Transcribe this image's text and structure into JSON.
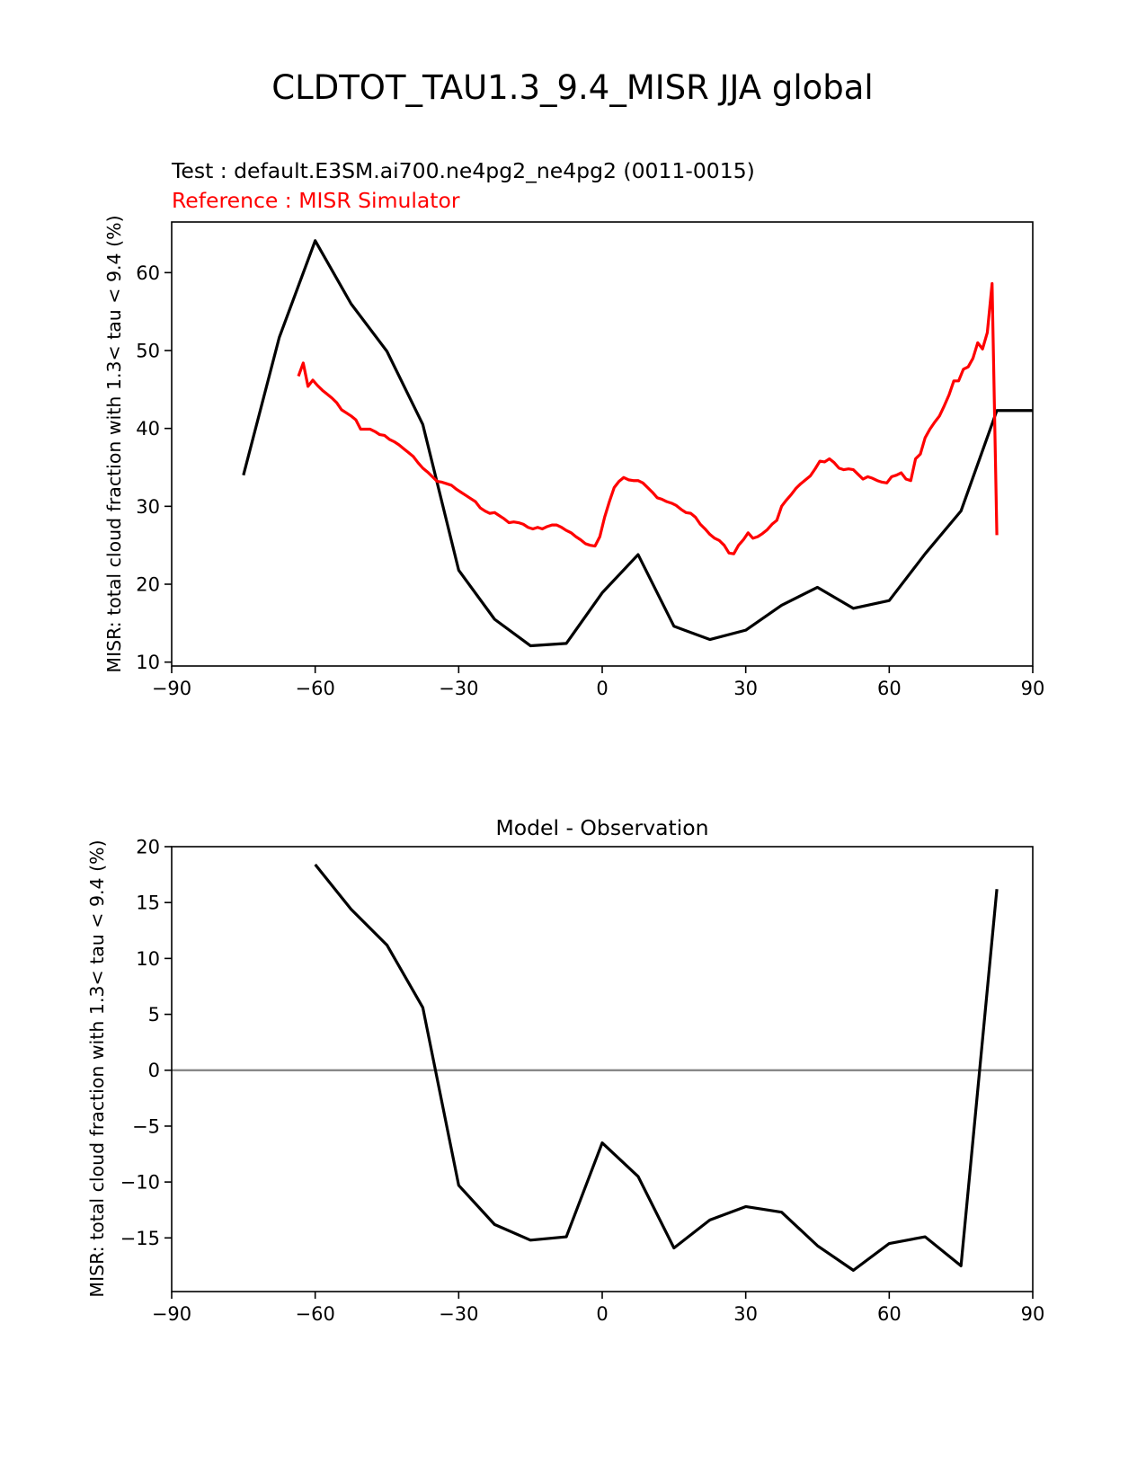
{
  "figure": {
    "suptitle": "CLDTOT_TAU1.3_9.4_MISR JJA global"
  },
  "chart_data": [
    {
      "type": "line",
      "title_test": "Test : default.E3SM.ai700.ne4pg2_ne4pg2 (0011-0015)",
      "title_reference": "Reference : MISR Simulator",
      "ylabel": "MISR: total cloud fraction with 1.3< tau < 9.4 (%)",
      "xlabel": "",
      "xlim": [
        -90,
        90
      ],
      "ylim": [
        9.5,
        66.5
      ],
      "xticks": [
        -90,
        -60,
        -30,
        0,
        30,
        60,
        90
      ],
      "yticks": [
        10,
        20,
        30,
        40,
        50,
        60
      ],
      "grid": false,
      "series": [
        {
          "role": "test",
          "color": "#000000",
          "x": [
            -75,
            -67.5,
            -60,
            -52.5,
            -45,
            -37.5,
            -30,
            -22.5,
            -15,
            -7.5,
            0,
            7.5,
            15,
            22.5,
            30,
            37.5,
            45,
            52.5,
            60,
            67.5,
            75,
            82.5,
            90
          ],
          "y": [
            34.0,
            51.7,
            64.1,
            56.0,
            49.9,
            40.5,
            21.8,
            15.5,
            12.1,
            12.4,
            18.9,
            23.8,
            14.6,
            12.9,
            14.1,
            17.3,
            19.6,
            16.9,
            17.9,
            23.9,
            29.4,
            42.3,
            42.3
          ]
        },
        {
          "role": "reference",
          "color": "#ff0000",
          "x": [
            -63.5,
            -62.5,
            -61.5,
            -60.5,
            -59.5,
            -58.5,
            -57.5,
            -56.5,
            -55.5,
            -54.5,
            -53.5,
            -52.5,
            -51.5,
            -50.5,
            -49.5,
            -48.5,
            -47.5,
            -46.5,
            -45.5,
            -44.5,
            -43.5,
            -42.5,
            -41.5,
            -40.5,
            -39.5,
            -38.5,
            -37.5,
            -36.5,
            -35.5,
            -34.5,
            -33.5,
            -32.5,
            -31.5,
            -30.5,
            -29.5,
            -28.5,
            -27.5,
            -26.5,
            -25.5,
            -24.5,
            -23.5,
            -22.5,
            -21.5,
            -20.5,
            -19.5,
            -18.5,
            -17.5,
            -16.5,
            -15.5,
            -14.5,
            -13.5,
            -12.5,
            -11.5,
            -10.5,
            -9.5,
            -8.5,
            -7.5,
            -6.5,
            -5.5,
            -4.5,
            -3.5,
            -2.5,
            -1.5,
            -0.5,
            0.5,
            1.5,
            2.5,
            3.5,
            4.5,
            5.5,
            6.5,
            7.5,
            8.5,
            9.5,
            10.5,
            11.5,
            12.5,
            13.5,
            14.5,
            15.5,
            16.5,
            17.5,
            18.5,
            19.5,
            20.5,
            21.5,
            22.5,
            23.5,
            24.5,
            25.5,
            26.5,
            27.5,
            28.5,
            29.5,
            30.5,
            31.5,
            32.5,
            33.5,
            34.5,
            35.5,
            36.5,
            37.5,
            38.5,
            39.5,
            40.5,
            41.5,
            42.5,
            43.5,
            44.5,
            45.5,
            46.5,
            47.5,
            48.5,
            49.5,
            50.5,
            51.5,
            52.5,
            53.5,
            54.5,
            55.5,
            56.5,
            57.5,
            58.5,
            59.5,
            60.5,
            61.5,
            62.5,
            63.5,
            64.5,
            65.5,
            66.5,
            67.5,
            68.5,
            69.5,
            70.5,
            71.5,
            72.5,
            73.5,
            74.5,
            75.5,
            76.5,
            77.5,
            78.5,
            79.5,
            80.5,
            81.5,
            82.5
          ],
          "y": [
            46.7,
            48.4,
            45.4,
            46.2,
            45.5,
            44.9,
            44.4,
            43.9,
            43.3,
            42.4,
            42.0,
            41.6,
            41.1,
            39.9,
            39.9,
            39.9,
            39.6,
            39.2,
            39.1,
            38.6,
            38.3,
            37.9,
            37.4,
            36.9,
            36.4,
            35.6,
            34.9,
            34.4,
            33.8,
            33.2,
            33.1,
            32.9,
            32.7,
            32.2,
            31.8,
            31.4,
            31.0,
            30.6,
            29.8,
            29.4,
            29.1,
            29.2,
            28.8,
            28.4,
            27.9,
            28.0,
            27.9,
            27.7,
            27.3,
            27.1,
            27.3,
            27.1,
            27.4,
            27.6,
            27.6,
            27.3,
            26.9,
            26.6,
            26.1,
            25.7,
            25.2,
            25.0,
            24.9,
            26.1,
            28.6,
            30.6,
            32.4,
            33.2,
            33.7,
            33.4,
            33.3,
            33.3,
            33.0,
            32.4,
            31.8,
            31.1,
            30.9,
            30.6,
            30.4,
            30.1,
            29.6,
            29.2,
            29.1,
            28.6,
            27.7,
            27.1,
            26.4,
            25.9,
            25.6,
            25.0,
            24.0,
            23.9,
            25.0,
            25.7,
            26.6,
            25.9,
            26.1,
            26.5,
            27.0,
            27.7,
            28.2,
            30.0,
            30.8,
            31.5,
            32.3,
            32.9,
            33.4,
            33.9,
            34.8,
            35.8,
            35.7,
            36.1,
            35.6,
            34.9,
            34.7,
            34.8,
            34.7,
            34.1,
            33.5,
            33.8,
            33.6,
            33.3,
            33.1,
            33.0,
            33.8,
            34.0,
            34.3,
            33.5,
            33.3,
            36.1,
            36.7,
            38.8,
            39.9,
            40.8,
            41.6,
            42.9,
            44.3,
            46.1,
            46.1,
            47.6,
            47.9,
            49.0,
            51.0,
            50.2,
            52.3,
            58.6,
            26.3
          ]
        }
      ]
    },
    {
      "type": "line",
      "title": "Model - Observation",
      "ylabel": "MISR: total cloud fraction with 1.3< tau < 9.4 (%)",
      "xlabel": "",
      "xlim": [
        -90,
        90
      ],
      "ylim": [
        -19.8,
        20
      ],
      "xticks": [
        -90,
        -60,
        -30,
        0,
        30,
        60,
        90
      ],
      "yticks": [
        20,
        15,
        10,
        5,
        0,
        -5,
        -10,
        -15
      ],
      "grid": false,
      "zero_line_color": "#808080",
      "series": [
        {
          "role": "difference",
          "color": "#000000",
          "x": [
            -60,
            -52.5,
            -45,
            -37.5,
            -30,
            -22.5,
            -15,
            -7.5,
            0,
            7.5,
            15,
            22.5,
            30,
            37.5,
            45,
            52.5,
            60,
            67.5,
            75,
            82.5
          ],
          "y": [
            18.4,
            14.4,
            11.2,
            5.6,
            -10.3,
            -13.8,
            -15.2,
            -14.9,
            -6.5,
            -9.5,
            -15.9,
            -13.4,
            -12.2,
            -12.7,
            -15.7,
            -17.9,
            -15.5,
            -14.9,
            -17.5,
            16.2
          ]
        }
      ]
    }
  ]
}
